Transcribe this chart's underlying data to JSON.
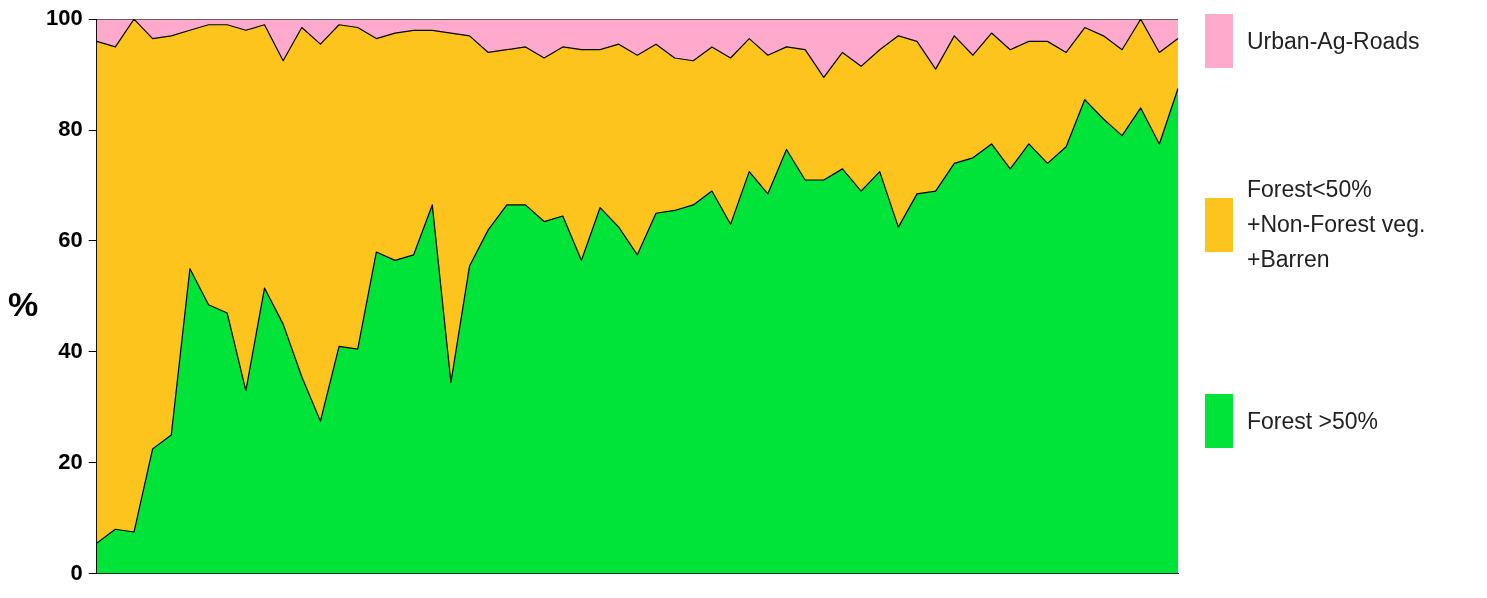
{
  "chart_data": {
    "type": "area",
    "stacked": true,
    "ylabel": "%",
    "ylim": [
      0,
      100
    ],
    "yticks": [
      0,
      20,
      40,
      60,
      80,
      100
    ],
    "grid": false,
    "legend": "right",
    "marker": "none",
    "categories": [
      null,
      null,
      null,
      null,
      null,
      null,
      null,
      null,
      null,
      null,
      null,
      null,
      null,
      null,
      null,
      null,
      null,
      null,
      null,
      null,
      null,
      null,
      null,
      null,
      null,
      null,
      null,
      null,
      null,
      null,
      null,
      null,
      null,
      null,
      null,
      null,
      null,
      null,
      null,
      null,
      null,
      null,
      null,
      null,
      null,
      null,
      null,
      null,
      null,
      null,
      null,
      null,
      null,
      null,
      null,
      null,
      null,
      null,
      null
    ],
    "series": [
      {
        "name": "Forest >50%",
        "color": "#00e43a",
        "values": [
          5.5,
          8,
          7.5,
          22.5,
          25,
          55,
          48.5,
          47,
          33,
          51.5,
          45,
          35.5,
          27.5,
          41,
          40.5,
          58,
          56.5,
          57.5,
          66.5,
          34.5,
          55.5,
          62,
          66.5,
          66.5,
          63.5,
          64.5,
          56.5,
          66,
          62.5,
          57.5,
          65,
          65.5,
          66.5,
          69,
          63,
          72.5,
          68.5,
          76.5,
          71,
          71,
          73,
          69,
          72.5,
          62.5,
          68.5,
          69,
          74,
          75,
          77.5,
          73,
          77.5,
          74,
          77,
          85.5,
          82,
          79,
          84,
          77.5,
          87.5
        ]
      },
      {
        "name": "Forest<50%\n+Non-Forest veg.\n+Barren",
        "color": "#fdc41e",
        "values": [
          90.5,
          87,
          92.5,
          74,
          72,
          43,
          50.5,
          52,
          65,
          47.5,
          47.5,
          63,
          68,
          58,
          58,
          38.5,
          41,
          40.5,
          31.5,
          63,
          41.5,
          32,
          28,
          28.5,
          29.5,
          30.5,
          38,
          28.5,
          33,
          36,
          30.5,
          27.5,
          26,
          26,
          30,
          24,
          25,
          18.5,
          23.5,
          18.5,
          21,
          22.5,
          22,
          34.5,
          27.5,
          22,
          23,
          18.5,
          20,
          21.5,
          18.5,
          22,
          17,
          13,
          15,
          15.5,
          16,
          16.5,
          9
        ]
      },
      {
        "name": "Urban-Ag-Roads",
        "color": "#ffaacc",
        "values": [
          4,
          5,
          0,
          3.5,
          3,
          2,
          1,
          1,
          2,
          1,
          7.5,
          1.5,
          4.5,
          1,
          1.5,
          3.5,
          2.5,
          2,
          2,
          2.5,
          3,
          6,
          5.5,
          5,
          7,
          5,
          5.5,
          5.5,
          4.5,
          6.5,
          4.5,
          7,
          7.5,
          5,
          7,
          3.5,
          6.5,
          5,
          5.5,
          10.5,
          6,
          8.5,
          5.5,
          3,
          4,
          9,
          3,
          6.5,
          2.5,
          5.5,
          4,
          4,
          6,
          1.5,
          3,
          5.5,
          0,
          6,
          3.5
        ]
      }
    ]
  }
}
